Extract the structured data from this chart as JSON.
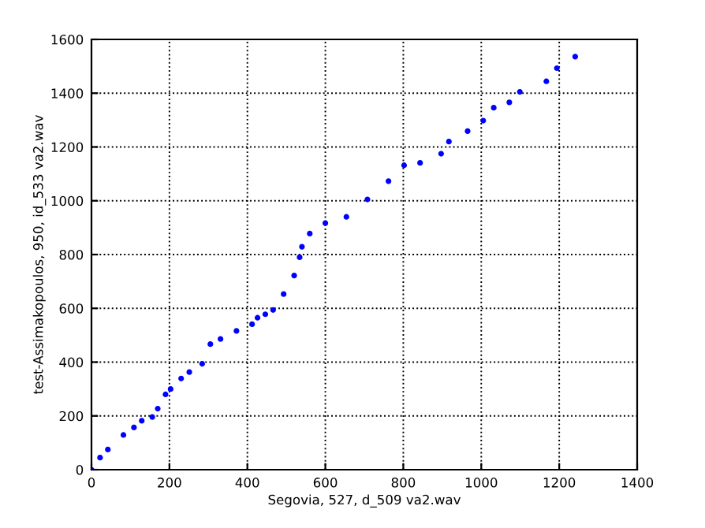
{
  "chart_data": {
    "type": "scatter",
    "xlabel": "Segovia, 527, d_509 va2.wav",
    "ylabel": "test-Assimakopoulos, 950, id_533 va2.wav",
    "x": [
      0,
      22,
      42,
      82,
      109,
      129,
      156,
      170,
      190,
      203,
      230,
      251,
      284,
      305,
      331,
      372,
      412,
      426,
      446,
      466,
      493,
      520,
      534,
      540,
      560,
      600,
      654,
      708,
      762,
      802,
      843,
      897,
      917,
      965,
      1005,
      1032,
      1072,
      1099,
      1167,
      1194,
      1241
    ],
    "series": [
      {
        "color": "#0000ff",
        "values": [
          0,
          45,
          75,
          129,
          157,
          182,
          196,
          227,
          280,
          300,
          339,
          363,
          394,
          467,
          486,
          516,
          541,
          565,
          578,
          594,
          653,
          722,
          790,
          829,
          878,
          917,
          940,
          1005,
          1073,
          1132,
          1141,
          1175,
          1220,
          1259,
          1298,
          1346,
          1366,
          1405,
          1444,
          1493,
          1536
        ]
      }
    ],
    "xlim": [
      0,
      1400
    ],
    "ylim": [
      0,
      1600
    ],
    "xticks": [
      0,
      200,
      400,
      600,
      800,
      1000,
      1200,
      1400
    ],
    "yticks": [
      0,
      200,
      400,
      600,
      800,
      1000,
      1200,
      1400,
      1600
    ],
    "grid": true,
    "marker": "circle"
  }
}
